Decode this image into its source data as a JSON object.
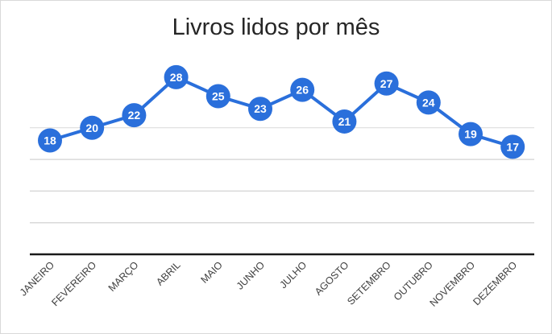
{
  "chart": {
    "title": "Livros lidos por mês",
    "series_color": "#2a6fdb",
    "gridline_color": "#d9d9d9",
    "axis_color": "#1a1a1a"
  },
  "chart_data": {
    "type": "line",
    "title": "Livros lidos por mês",
    "xlabel": "",
    "ylabel": "",
    "categories": [
      "JANEIRO",
      "FEVEREIRO",
      "MARÇO",
      "ABRIL",
      "MAIO",
      "JUNHO",
      "JULHO",
      "AGOSTO",
      "SETEMBRO",
      "OUTUBRO",
      "NOVEMBRO",
      "DEZEMBRO"
    ],
    "series": [
      {
        "name": "Livros lidos",
        "values": [
          18,
          20,
          22,
          28,
          25,
          23,
          26,
          21,
          27,
          24,
          19,
          17
        ]
      }
    ],
    "ylim": [
      0,
      30
    ],
    "y_gridlines": [
      5,
      10,
      15,
      20
    ],
    "grid": true,
    "y_tick_labels_visible": false,
    "data_labels": true,
    "legend": "none"
  }
}
